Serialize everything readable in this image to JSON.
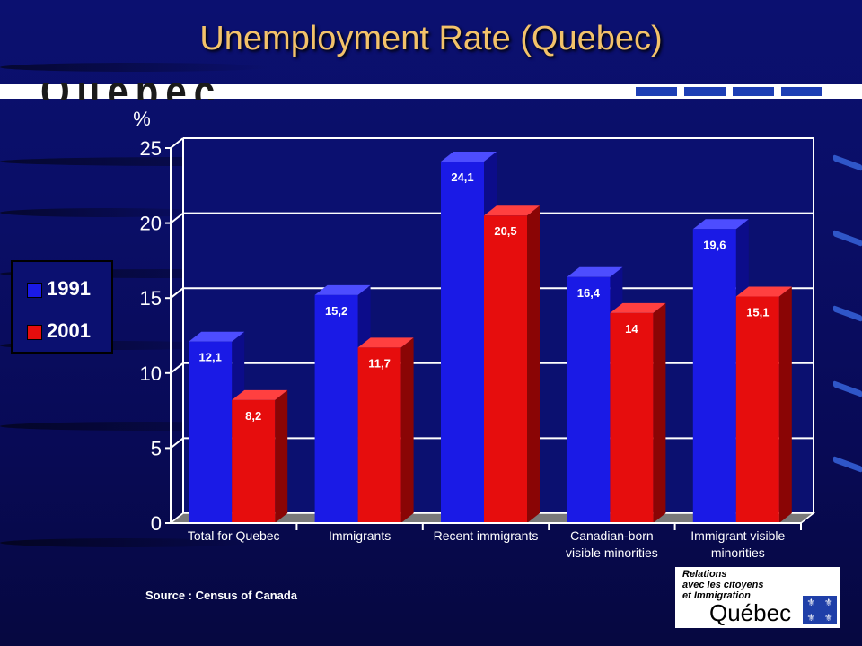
{
  "slide": {
    "title": "Unemployment Rate (Quebec)",
    "banner_text": "Québec",
    "source": "Source : Census of Canada"
  },
  "legend": {
    "items": [
      {
        "label": "1991",
        "color": "#1a1ae6"
      },
      {
        "label": "2001",
        "color": "#e60d0d"
      }
    ]
  },
  "logo": {
    "line1": "Relations",
    "line2": "avec les citoyens",
    "line3": "et Immigration",
    "name": "Québec",
    "flag_glyph": "⚜"
  },
  "chart_data": {
    "type": "bar",
    "title": "Unemployment Rate (Quebec)",
    "ylabel": "%",
    "ylim": [
      0,
      25
    ],
    "yticks": [
      0,
      5,
      10,
      15,
      20,
      25
    ],
    "grid": true,
    "legend_position": "left",
    "categories": [
      [
        "Total for Quebec"
      ],
      [
        "Immigrants"
      ],
      [
        "Recent immigrants"
      ],
      [
        "Canadian-born",
        "visible minorities"
      ],
      [
        "Immigrant visible",
        "minorities"
      ]
    ],
    "series": [
      {
        "name": "1991",
        "values": [
          12.1,
          15.2,
          24.1,
          16.4,
          19.6
        ],
        "labels": [
          "12,1",
          "15,2",
          "24,1",
          "16,4",
          "19,6"
        ],
        "color": "#1a1ae6"
      },
      {
        "name": "2001",
        "values": [
          8.2,
          11.7,
          20.5,
          14,
          15.1
        ],
        "labels": [
          "8,2",
          "11,7",
          "20,5",
          "14",
          "15,1"
        ],
        "color": "#e60d0d"
      }
    ]
  }
}
